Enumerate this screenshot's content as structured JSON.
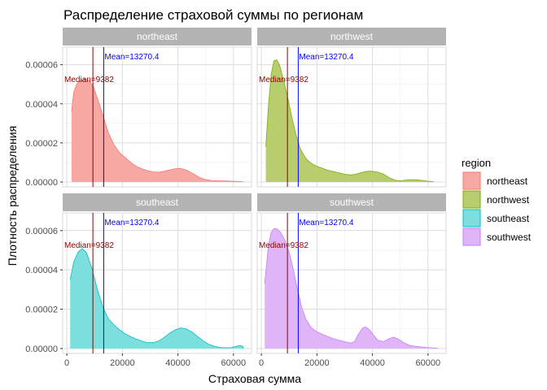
{
  "chart_data": {
    "type": "area",
    "title": "Распределение страховой суммы по регионам",
    "xlabel": "Страховая сумма",
    "ylabel": "Плотность распределения",
    "xlim": [
      -1500,
      66500
    ],
    "ylim": [
      -2.5e-06,
      6.9e-05
    ],
    "x_ticks": [
      0,
      20000,
      40000,
      60000
    ],
    "x_tick_labels": [
      "0",
      "20000",
      "40000",
      "60000"
    ],
    "y_ticks": [
      0,
      2e-05,
      4e-05,
      6e-05
    ],
    "y_tick_labels": [
      "0.00000",
      "0.00002",
      "0.00004",
      "0.00006"
    ],
    "grid": true,
    "legend": {
      "title": "region",
      "position": "right",
      "items": [
        "northeast",
        "northwest",
        "southeast",
        "southwest"
      ]
    },
    "reference_lines": {
      "median": {
        "value": 9382,
        "label": "Median=9382",
        "color": "#8b0000"
      },
      "mean": {
        "value": 13270.4,
        "label": "Mean=13270.4",
        "color": "#0000ff"
      }
    },
    "facets": [
      {
        "name": "northeast",
        "fill": "#f8a8a3",
        "stroke": "#f8766d",
        "points": [
          [
            1700,
            3.6e-05
          ],
          [
            2500,
            4.6e-05
          ],
          [
            3500,
            5e-05
          ],
          [
            5000,
            5.2e-05
          ],
          [
            6500,
            5.28e-05
          ],
          [
            8000,
            5.2e-05
          ],
          [
            9500,
            4.9e-05
          ],
          [
            11000,
            4.3e-05
          ],
          [
            13000,
            3.4e-05
          ],
          [
            15000,
            2.5e-05
          ],
          [
            17000,
            1.9e-05
          ],
          [
            19000,
            1.5e-05
          ],
          [
            21000,
            1.25e-05
          ],
          [
            23000,
            1e-05
          ],
          [
            25000,
            8e-06
          ],
          [
            27000,
            6.8e-06
          ],
          [
            29000,
            5.8e-06
          ],
          [
            31000,
            5.2e-06
          ],
          [
            33000,
            5e-06
          ],
          [
            35000,
            5.5e-06
          ],
          [
            37000,
            6.2e-06
          ],
          [
            39000,
            6.8e-06
          ],
          [
            40500,
            7e-06
          ],
          [
            42000,
            6.6e-06
          ],
          [
            44000,
            5.5e-06
          ],
          [
            46000,
            3.8e-06
          ],
          [
            48000,
            2.2e-06
          ],
          [
            50000,
            1.2e-06
          ],
          [
            52000,
            8e-07
          ],
          [
            55000,
            6e-07
          ],
          [
            58000,
            5e-07
          ],
          [
            61000,
            3e-07
          ],
          [
            63500,
            1e-07
          ]
        ]
      },
      {
        "name": "northwest",
        "fill": "#b8cd6e",
        "stroke": "#7cae00",
        "points": [
          [
            1600,
            1.8e-05
          ],
          [
            2500,
            3.8e-05
          ],
          [
            3500,
            5.5e-05
          ],
          [
            4500,
            6.2e-05
          ],
          [
            5500,
            6.25e-05
          ],
          [
            6500,
            6e-05
          ],
          [
            8000,
            5.2e-05
          ],
          [
            9500,
            4.3e-05
          ],
          [
            11000,
            3.3e-05
          ],
          [
            12500,
            2.4e-05
          ],
          [
            14000,
            1.7e-05
          ],
          [
            16000,
            1.2e-05
          ],
          [
            18000,
            9.5e-06
          ],
          [
            20000,
            8e-06
          ],
          [
            22000,
            7e-06
          ],
          [
            24000,
            6e-06
          ],
          [
            26000,
            5.3e-06
          ],
          [
            28000,
            4.6e-06
          ],
          [
            30000,
            4e-06
          ],
          [
            32000,
            3.6e-06
          ],
          [
            34000,
            4e-06
          ],
          [
            36000,
            4.8e-06
          ],
          [
            38000,
            5.5e-06
          ],
          [
            40000,
            5.5e-06
          ],
          [
            42000,
            5e-06
          ],
          [
            44000,
            4e-06
          ],
          [
            46000,
            2.2e-06
          ],
          [
            48000,
            1e-06
          ],
          [
            50000,
            6e-07
          ],
          [
            53000,
            1.2e-06
          ],
          [
            56000,
            1.2e-06
          ],
          [
            58000,
            8e-07
          ],
          [
            60000,
            4e-07
          ],
          [
            62000,
            1e-07
          ]
        ]
      },
      {
        "name": "southeast",
        "fill": "#7ddfdd",
        "stroke": "#00bfc4",
        "points": [
          [
            1200,
            3.5e-05
          ],
          [
            2500,
            4.4e-05
          ],
          [
            4000,
            4.9e-05
          ],
          [
            5500,
            5.08e-05
          ],
          [
            7000,
            4.9e-05
          ],
          [
            9000,
            4.1e-05
          ],
          [
            11000,
            3e-05
          ],
          [
            13000,
            2.1e-05
          ],
          [
            15000,
            1.5e-05
          ],
          [
            17000,
            1.2e-05
          ],
          [
            19000,
            9.5e-06
          ],
          [
            21000,
            7.5e-06
          ],
          [
            23000,
            6e-06
          ],
          [
            25000,
            4.8e-06
          ],
          [
            27000,
            3.8e-06
          ],
          [
            29000,
            3e-06
          ],
          [
            31000,
            3e-06
          ],
          [
            33000,
            3.8e-06
          ],
          [
            35000,
            5.5e-06
          ],
          [
            37000,
            7.8e-06
          ],
          [
            39000,
            9.5e-06
          ],
          [
            41000,
            1.05e-05
          ],
          [
            43000,
            1e-05
          ],
          [
            45000,
            8.5e-06
          ],
          [
            47000,
            6.2e-06
          ],
          [
            49000,
            4e-06
          ],
          [
            51000,
            2.2e-06
          ],
          [
            53000,
            1.2e-06
          ],
          [
            55000,
            6e-07
          ],
          [
            57000,
            4e-07
          ],
          [
            59000,
            4e-07
          ],
          [
            61000,
            1.2e-06
          ],
          [
            62500,
            1.5e-06
          ],
          [
            63500,
            8e-07
          ]
        ]
      },
      {
        "name": "southwest",
        "fill": "#e0b5f7",
        "stroke": "#c77cff",
        "points": [
          [
            1200,
            3.3e-05
          ],
          [
            2500,
            5.2e-05
          ],
          [
            3500,
            5.9e-05
          ],
          [
            4500,
            6.1e-05
          ],
          [
            5500,
            6.1e-05
          ],
          [
            7000,
            5.9e-05
          ],
          [
            8500,
            5.5e-05
          ],
          [
            10000,
            4.9e-05
          ],
          [
            11500,
            4e-05
          ],
          [
            13000,
            3e-05
          ],
          [
            14500,
            2.1e-05
          ],
          [
            16000,
            1.5e-05
          ],
          [
            18000,
            1.05e-05
          ],
          [
            20000,
            8.5e-06
          ],
          [
            22000,
            7.2e-06
          ],
          [
            24000,
            6e-06
          ],
          [
            26000,
            5e-06
          ],
          [
            28000,
            4.2e-06
          ],
          [
            30000,
            3.5e-06
          ],
          [
            32000,
            2.8e-06
          ],
          [
            33500,
            3.5e-06
          ],
          [
            35000,
            7.5e-06
          ],
          [
            36500,
            1.05e-05
          ],
          [
            37500,
            1.1e-05
          ],
          [
            39000,
            9.5e-06
          ],
          [
            40500,
            6.5e-06
          ],
          [
            42000,
            4.2e-06
          ],
          [
            44000,
            3.5e-06
          ],
          [
            46000,
            5e-06
          ],
          [
            47500,
            5.8e-06
          ],
          [
            49000,
            5e-06
          ],
          [
            51000,
            3.2e-06
          ],
          [
            53000,
            1.8e-06
          ],
          [
            55000,
            1.2e-06
          ],
          [
            57000,
            9e-07
          ],
          [
            59000,
            6e-07
          ],
          [
            61000,
            4e-07
          ],
          [
            63500,
            1e-07
          ]
        ]
      }
    ]
  }
}
